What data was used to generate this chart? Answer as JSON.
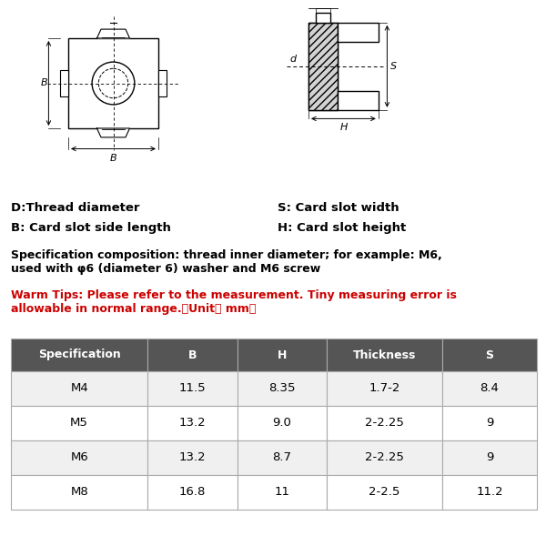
{
  "spec_text": "Specification composition: thread inner diameter; for example: M6,\nused with φ6 (diameter 6) washer and M6 screw",
  "warm_tips": "Warm Tips: Please refer to the measurement. Tiny measuring error is\nallowable in normal range.（Unit： mm）",
  "label_D": "D:Thread diameter",
  "label_B": "B: Card slot side length",
  "label_S": "S: Card slot width",
  "label_H": "H: Card slot height",
  "table_headers": [
    "Specification",
    "B",
    "H",
    "Thickness",
    "S"
  ],
  "table_data": [
    [
      "M4",
      "11.5",
      "8.35",
      "1.7-2",
      "8.4"
    ],
    [
      "M5",
      "13.2",
      "9.0",
      "2-2.25",
      "9"
    ],
    [
      "M6",
      "13.2",
      "8.7",
      "2-2.25",
      "9"
    ],
    [
      "M8",
      "16.8",
      "11",
      "2-2.5",
      "11.2"
    ]
  ],
  "header_bg": "#555555",
  "header_fg": "#ffffff",
  "border_color": "#aaaaaa",
  "warm_tips_color": "#cc0000",
  "bg_color": "#ffffff"
}
